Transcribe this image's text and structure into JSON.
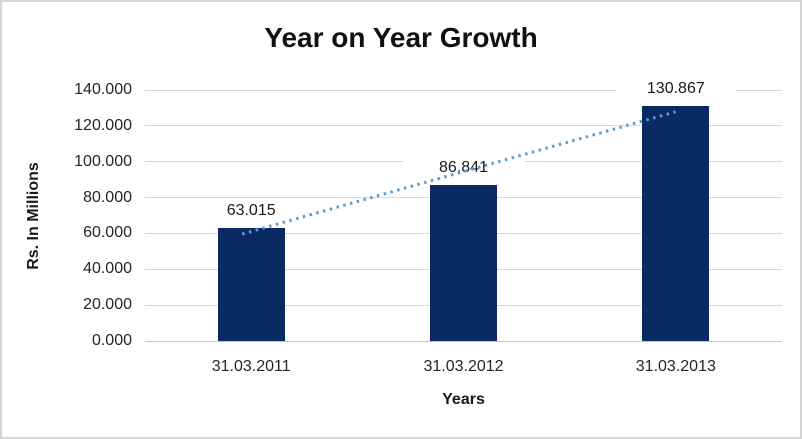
{
  "chart_data": {
    "type": "bar",
    "title": "Year on Year Growth",
    "xlabel": "Years",
    "ylabel": "Rs. In Millions",
    "categories": [
      "31.03.2011",
      "31.03.2012",
      "31.03.2013"
    ],
    "values": [
      63.015,
      86.841,
      130.867
    ],
    "data_labels": [
      "63.015",
      "86.841",
      "130.867"
    ],
    "ytick_values": [
      0,
      20,
      40,
      60,
      80,
      100,
      120,
      140
    ],
    "ytick_labels": [
      "0.000",
      "20.000",
      "40.000",
      "60.000",
      "80.000",
      "100.000",
      "120.000",
      "140.000"
    ],
    "ylim": [
      0,
      140
    ],
    "grid": true,
    "legend": false,
    "trendline": {
      "type": "linear",
      "style": "dotted"
    }
  },
  "colors": {
    "bar": "#0b2a63",
    "trendline": "#5b9bd5",
    "gridline": "#d9d9d9",
    "axis_line": "#c6c6c6",
    "tick_text": "#262626",
    "title_text": "#111111",
    "frame_border": "#d6d6d6",
    "background": "#ffffff"
  }
}
